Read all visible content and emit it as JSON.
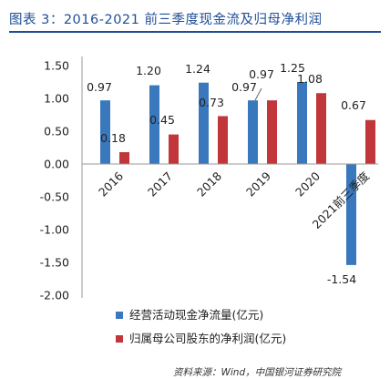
{
  "title": "图表 3：2016-2021 前三季度现金流及归母净利润",
  "source_note": "资料来源：Wind，中国银河证券研究院",
  "chart_data": {
    "type": "bar",
    "categories": [
      "2016",
      "2017",
      "2018",
      "2019",
      "2020",
      "2021前三季度"
    ],
    "series": [
      {
        "name": "经营活动现金净流量(亿元)",
        "color": "#3a78bd",
        "values": [
          0.97,
          1.2,
          1.24,
          0.97,
          1.25,
          -1.54
        ]
      },
      {
        "name": "归属母公司股东的净利润(亿元)",
        "color": "#c0363b",
        "values": [
          0.18,
          0.45,
          0.73,
          0.97,
          1.08,
          0.67
        ]
      }
    ],
    "value_labels": [
      [
        "0.97",
        "1.20",
        "1.24",
        "0.97",
        "1.25",
        "-1.54"
      ],
      [
        "0.18",
        "0.45",
        "0.73",
        "0.97",
        "1.08",
        "0.67"
      ]
    ],
    "yticks": [
      "1.50",
      "1.00",
      "0.50",
      "0.00",
      "-0.50",
      "-1.00",
      "-1.50",
      "-2.00"
    ],
    "ylim": [
      -2.0,
      1.5
    ],
    "grid": false,
    "legend_position": "bottom"
  }
}
